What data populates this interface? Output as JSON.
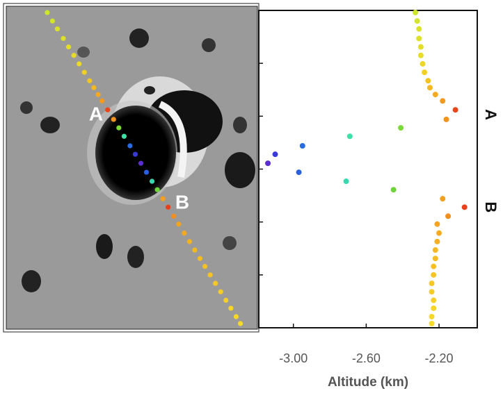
{
  "chart_data": {
    "type": "scatter",
    "xlabel": "Altitude (km)",
    "x": [
      -2.33,
      -2.32,
      -2.31,
      -2.31,
      -2.3,
      -2.3,
      -2.29,
      -2.28,
      -2.26,
      -2.25,
      -2.22,
      -2.18,
      -2.11,
      -2.16,
      -2.41,
      -2.69,
      -2.95,
      -3.1,
      -3.14,
      -2.97,
      -2.71,
      -2.45,
      -2.18,
      -2.06,
      -2.15,
      -2.21,
      -2.2,
      -2.21,
      -2.22,
      -2.22,
      -2.23,
      -2.23,
      -2.24,
      -2.24,
      -2.23,
      -2.23,
      -2.24,
      -2.24
    ],
    "values": [
      0.04,
      0.2,
      0.35,
      0.53,
      0.69,
      0.85,
      1.01,
      1.17,
      1.33,
      1.46,
      1.59,
      1.71,
      1.88,
      2.06,
      2.22,
      2.38,
      2.56,
      2.72,
      2.89,
      3.06,
      3.23,
      3.39,
      3.56,
      3.72,
      3.89,
      4.04,
      4.21,
      4.37,
      4.53,
      4.69,
      4.84,
      5.0,
      5.16,
      5.32,
      5.48,
      5.63,
      5.79,
      5.92
    ],
    "colors": [
      "#cde62c",
      "#d2e42c",
      "#d8e22a",
      "#dde02a",
      "#e2de28",
      "#e8dc28",
      "#ecd826",
      "#f0d024",
      "#f2c422",
      "#f4b820",
      "#f5aa20",
      "#f49a1e",
      "#e8461a",
      "#f39420",
      "#7ad838",
      "#3ee0a8",
      "#2a6ce0",
      "#3a3ad8",
      "#5a2ed0",
      "#2a60e0",
      "#3ad8b0",
      "#6ed43a",
      "#f3a020",
      "#e8401a",
      "#f38e20",
      "#f4a420",
      "#f4aa20",
      "#f4b222",
      "#f4b822",
      "#f4bc22",
      "#f5c024",
      "#f5c424",
      "#f6c826",
      "#f6cc26",
      "#f6d028",
      "#f6d428",
      "#f6d82a",
      "#f6da2a"
    ],
    "xlim": [
      -3.19,
      -1.99
    ],
    "ylim": [
      6,
      0
    ],
    "xticks": [
      {
        "value": -3,
        "label": "-3.00"
      },
      {
        "value": -2.6,
        "label": "-2.60"
      },
      {
        "value": -2.2,
        "label": "-2.20"
      }
    ],
    "yticks": [
      1,
      2,
      3,
      4,
      5
    ],
    "markers": [
      {
        "label": "A",
        "y": 1.97
      },
      {
        "label": "B",
        "y": 3.72
      }
    ]
  }
}
